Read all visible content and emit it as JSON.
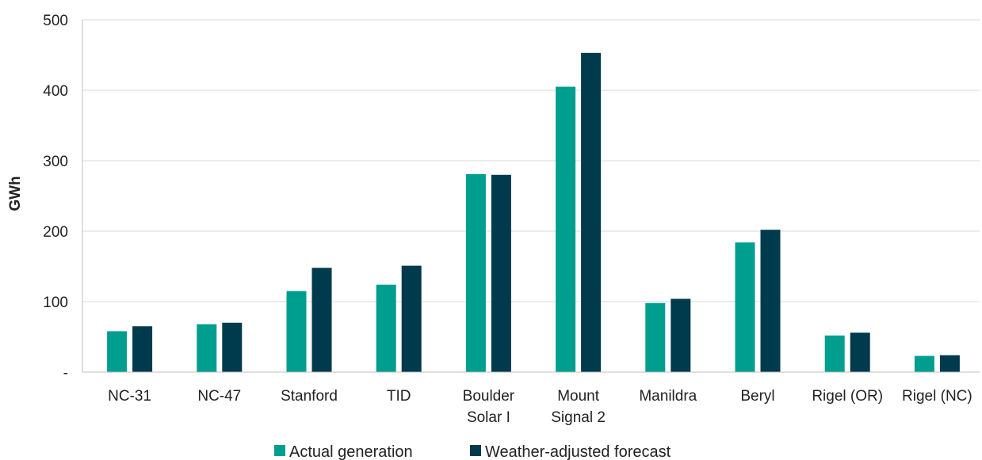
{
  "chart_data": {
    "type": "bar",
    "title": "",
    "xlabel": "",
    "ylabel": "GWh",
    "ylim": [
      0,
      500
    ],
    "yticks": [
      0,
      100,
      200,
      300,
      400,
      500
    ],
    "ytick_labels": [
      "-",
      "100",
      "200",
      "300",
      "400",
      "500"
    ],
    "grid": true,
    "legend_position": "bottom",
    "categories": [
      [
        "NC-31"
      ],
      [
        "NC-47"
      ],
      [
        "Stanford"
      ],
      [
        "TID"
      ],
      [
        "Boulder",
        "Solar I"
      ],
      [
        "Mount",
        "Signal 2"
      ],
      [
        "Manildra"
      ],
      [
        "Beryl"
      ],
      [
        "Rigel (OR)"
      ],
      [
        "Rigel (NC)"
      ]
    ],
    "series": [
      {
        "name": "Actual generation",
        "color": "#009e8e",
        "values": [
          58,
          68,
          115,
          124,
          281,
          405,
          98,
          184,
          52,
          23
        ]
      },
      {
        "name": "Weather-adjusted forecast",
        "color": "#003a4d",
        "values": [
          65,
          70,
          148,
          151,
          280,
          453,
          104,
          202,
          56,
          24
        ]
      }
    ]
  }
}
